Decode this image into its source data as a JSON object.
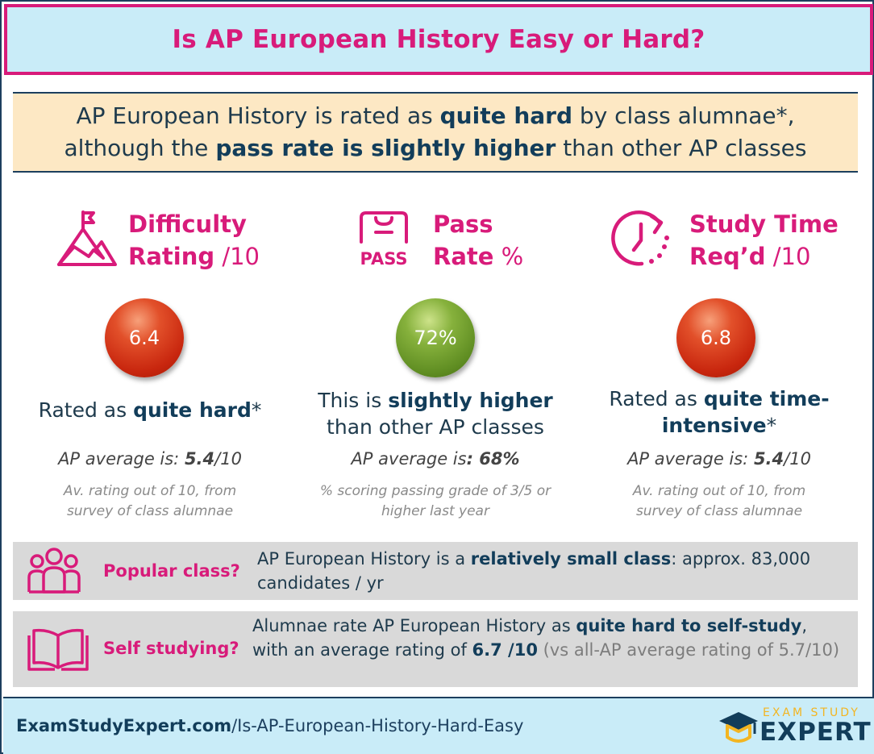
{
  "title": "Is AP European History Easy or Hard?",
  "summary": {
    "line1_a": "AP European History is rated as ",
    "line1_b": "quite hard",
    "line1_c": " by class alumnae*,",
    "line2_a": "although the ",
    "line2_b": "pass rate is slightly higher",
    "line2_c": " than other AP classes"
  },
  "columns": [
    {
      "icon": "mountain-flag-icon",
      "title_line1": "Difficulty",
      "title_line2": "Rating",
      "unit": " /10",
      "value": "6.4",
      "value_color": "red",
      "verdict_a": "Rated as ",
      "verdict_b": "quite hard",
      "verdict_c": "*",
      "avg_label": "AP average is: ",
      "avg_value": "5.4",
      "avg_unit": "/10",
      "note": "Av. rating out of 10, from survey of class alumnae"
    },
    {
      "icon": "pass-icon",
      "icon_text": "PASS",
      "title_line1": "Pass",
      "title_line2": "Rate",
      "unit": " %",
      "value": "72%",
      "value_color": "green",
      "verdict_a": "This is ",
      "verdict_b": "slightly higher",
      "verdict_c": "than other AP classes",
      "avg_label": "AP average is",
      "avg_value": ": 68%",
      "avg_unit": "",
      "note": "% scoring passing grade of 3/5 or higher last year"
    },
    {
      "icon": "clock-icon",
      "title_line1": "Study Time",
      "title_line2": "Req’d",
      "unit": " /10",
      "value": "6.8",
      "value_color": "red",
      "verdict_a": "Rated as ",
      "verdict_b": "quite time-intensive",
      "verdict_c": "*",
      "avg_label": "AP average is: ",
      "avg_value": "5.4",
      "avg_unit": "/10",
      "note": "Av. rating out of 10, from survey of class alumnae"
    }
  ],
  "popular": {
    "icon": "people-group-icon",
    "label": "Popular class?",
    "text_a": "AP European History is a ",
    "text_b": "relatively small class",
    "text_c": ": approx. 83,000 candidates / yr"
  },
  "self_study": {
    "icon": "open-book-icon",
    "label": "Self studying?",
    "text_a": "Alumnae rate AP European History as ",
    "text_b": "quite hard to self-study",
    "text_c": ", with an average rating of ",
    "text_d": "6.7 /10",
    "text_e": " (vs all-AP average rating of 5.7/10)"
  },
  "footer": {
    "url_bold": "ExamStudyExpert.com",
    "url_rest": "/Is-AP-European-History-Hard-Easy",
    "logo_top": "EXAM STUDY",
    "logo_main": "EXPERT",
    "logo_icon": "graduation-cap-icon"
  },
  "colors": {
    "accent": "#d81b7a",
    "navy": "#123d5a",
    "title_bg": "#c9ecf8",
    "summary_bg": "#fde8c4",
    "strip_bg": "#d9d9d9",
    "logo_gold": "#f3b521"
  }
}
